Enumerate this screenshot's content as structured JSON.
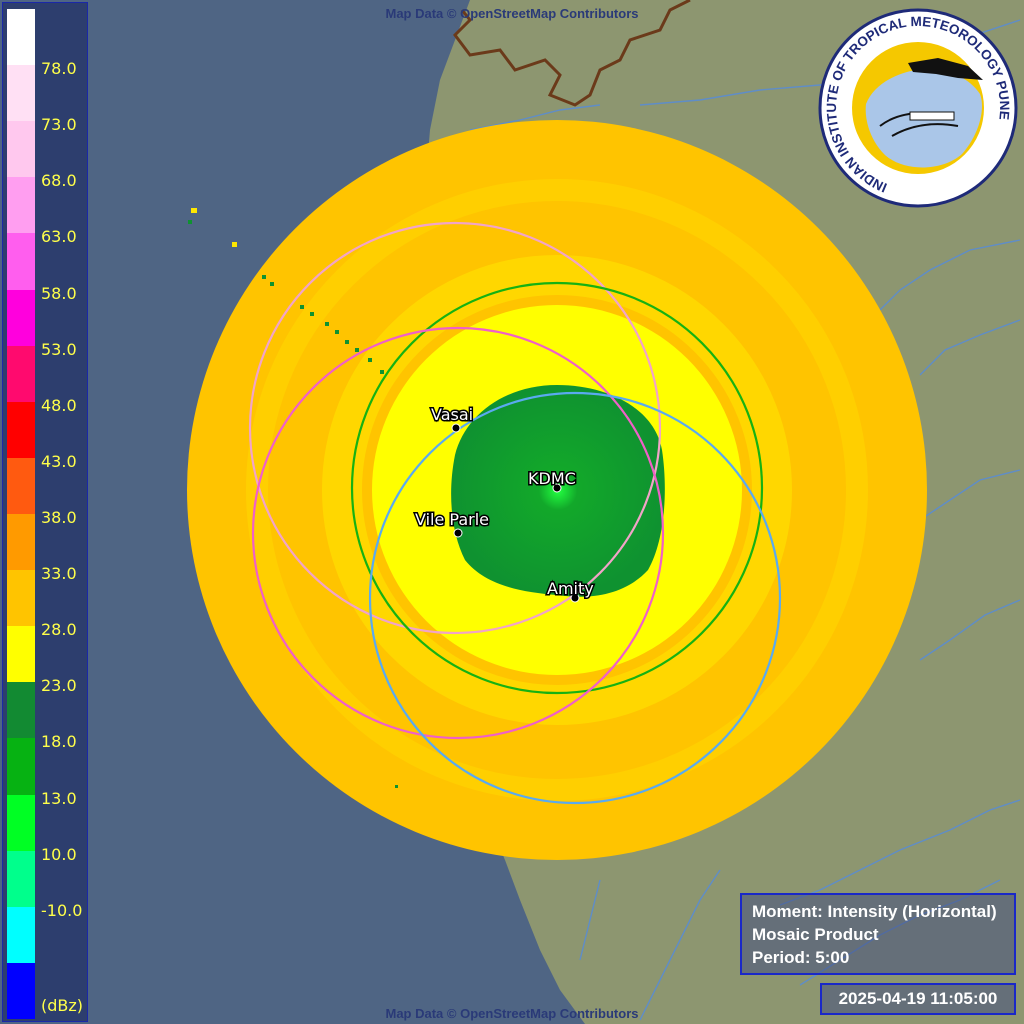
{
  "attribution": {
    "top": "Map Data © OpenStreetMap Contributors",
    "bottom": "Map Data © OpenStreetMap Contributors"
  },
  "legend": {
    "unit": "(dBz)",
    "colors": [
      "#ffffff",
      "#ffe0f4",
      "#ffc8ee",
      "#ff9ef0",
      "#ff5eee",
      "#ff00dd",
      "#ff0a6e",
      "#ff0000",
      "#ff5a10",
      "#ff9a00",
      "#ffc400",
      "#ffff00",
      "#128a32",
      "#06b212",
      "#00ff24",
      "#00ff8c",
      "#00ffff",
      "#0000ff"
    ],
    "labels": [
      "78.0",
      "73.0",
      "68.0",
      "63.0",
      "58.0",
      "53.0",
      "48.0",
      "43.0",
      "38.0",
      "33.0",
      "28.0",
      "23.0",
      "18.0",
      "13.0",
      "10.0",
      "-10.0"
    ]
  },
  "sites": [
    {
      "name": "Vasai",
      "color": "#f2a4c8"
    },
    {
      "name": "KDMC",
      "color": "#16b212"
    },
    {
      "name": "Vile Parle",
      "color": "#f060c8"
    },
    {
      "name": "Amity",
      "color": "#5aaaf0"
    }
  ],
  "info": {
    "moment": "Moment: Intensity (Horizontal)",
    "product": "Mosaic Product",
    "period": "Period: 5:00"
  },
  "timestamp": "2025-04-19 11:05:00",
  "logo": {
    "text": "INDIAN INSTITUTE OF TROPICAL METEOROLOGY PUNE"
  }
}
